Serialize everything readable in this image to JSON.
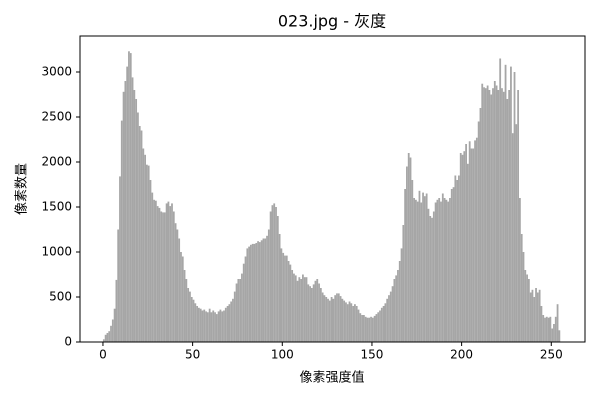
{
  "chart_data": {
    "type": "histogram",
    "title": "023.jpg - 灰度",
    "xlabel": "像素强度值",
    "ylabel": "像素数量",
    "color": "#a6a6a6",
    "bins": [
      0,
      1,
      2,
      3,
      4,
      5,
      6,
      7,
      8,
      9,
      10,
      11,
      12,
      13,
      14,
      15,
      16,
      17,
      18,
      19,
      20,
      21,
      22,
      23,
      24,
      25,
      26,
      27,
      28,
      29,
      30,
      31,
      32,
      33,
      34,
      35,
      36,
      37,
      38,
      39,
      40,
      41,
      42,
      43,
      44,
      45,
      46,
      47,
      48,
      49,
      50,
      51,
      52,
      53,
      54,
      55,
      56,
      57,
      58,
      59,
      60,
      61,
      62,
      63,
      64,
      65,
      66,
      67,
      68,
      69,
      70,
      71,
      72,
      73,
      74,
      75,
      76,
      77,
      78,
      79,
      80,
      81,
      82,
      83,
      84,
      85,
      86,
      87,
      88,
      89,
      90,
      91,
      92,
      93,
      94,
      95,
      96,
      97,
      98,
      99,
      100,
      101,
      102,
      103,
      104,
      105,
      106,
      107,
      108,
      109,
      110,
      111,
      112,
      113,
      114,
      115,
      116,
      117,
      118,
      119,
      120,
      121,
      122,
      123,
      124,
      125,
      126,
      127,
      128,
      129,
      130,
      131,
      132,
      133,
      134,
      135,
      136,
      137,
      138,
      139,
      140,
      141,
      142,
      143,
      144,
      145,
      146,
      147,
      148,
      149,
      150,
      151,
      152,
      153,
      154,
      155,
      156,
      157,
      158,
      159,
      160,
      161,
      162,
      163,
      164,
      165,
      166,
      167,
      168,
      169,
      170,
      171,
      172,
      173,
      174,
      175,
      176,
      177,
      178,
      179,
      180,
      181,
      182,
      183,
      184,
      185,
      186,
      187,
      188,
      189,
      190,
      191,
      192,
      193,
      194,
      195,
      196,
      197,
      198,
      199,
      200,
      201,
      202,
      203,
      204,
      205,
      206,
      207,
      208,
      209,
      210,
      211,
      212,
      213,
      214,
      215,
      216,
      217,
      218,
      219,
      220,
      221,
      222,
      223,
      224,
      225,
      226,
      227,
      228,
      229,
      230,
      231,
      232,
      233,
      234,
      235,
      236,
      237,
      238,
      239,
      240,
      241,
      242,
      243,
      244,
      245,
      246,
      247,
      248,
      249,
      250,
      251,
      252,
      253,
      254,
      255,
      256
    ],
    "values": [
      30,
      80,
      100,
      120,
      180,
      250,
      370,
      690,
      1250,
      1840,
      2460,
      2780,
      2900,
      3060,
      3230,
      3210,
      2940,
      2800,
      2700,
      2550,
      2400,
      2350,
      2150,
      2080,
      1970,
      1960,
      1800,
      1660,
      1580,
      1570,
      1510,
      1490,
      1450,
      1440,
      1440,
      1540,
      1560,
      1510,
      1540,
      1450,
      1320,
      1250,
      1150,
      1000,
      950,
      800,
      700,
      600,
      560,
      500,
      470,
      430,
      400,
      380,
      370,
      350,
      360,
      340,
      330,
      370,
      330,
      350,
      330,
      310,
      340,
      360,
      340,
      350,
      380,
      400,
      420,
      450,
      480,
      560,
      650,
      700,
      700,
      760,
      870,
      950,
      1040,
      1060,
      1080,
      1090,
      1090,
      1100,
      1120,
      1110,
      1130,
      1150,
      1150,
      1180,
      1250,
      1450,
      1520,
      1540,
      1500,
      1400,
      1200,
      1040,
      990,
      960,
      960,
      900,
      860,
      800,
      760,
      740,
      680,
      720,
      700,
      750,
      720,
      720,
      640,
      620,
      600,
      640,
      680,
      700,
      650,
      600,
      550,
      520,
      500,
      480,
      460,
      500,
      480,
      520,
      540,
      540,
      510,
      480,
      460,
      440,
      420,
      450,
      430,
      400,
      420,
      400,
      360,
      320,
      300,
      300,
      280,
      270,
      270,
      280,
      270,
      290,
      310,
      330,
      350,
      380,
      400,
      430,
      480,
      520,
      560,
      620,
      700,
      740,
      800,
      900,
      1040,
      1300,
      1700,
      1950,
      2100,
      2050,
      1800,
      1600,
      1580,
      1560,
      1680,
      1550,
      1660,
      1620,
      1650,
      1480,
      1400,
      1380,
      1450,
      1550,
      1580,
      1600,
      1560,
      1650,
      1600,
      1580,
      1560,
      1600,
      1700,
      1720,
      1850,
      1800,
      1850,
      2100,
      2080,
      2120,
      2200,
      1980,
      2230,
      2150,
      2150,
      2240,
      2270,
      2450,
      2600,
      2870,
      2830,
      2820,
      2850,
      2800,
      2750,
      2820,
      2900,
      2850,
      2800,
      3150,
      2820,
      2780,
      3080,
      2700,
      2800,
      3060,
      2320,
      3000,
      2420,
      2800,
      1600,
      1200,
      1000,
      800,
      750,
      700,
      550,
      580,
      500,
      600,
      550,
      580,
      400,
      300,
      270,
      280,
      270,
      280,
      150,
      200,
      280,
      420,
      130,
      0
    ],
    "xlim": [
      -12.8,
      268.8
    ],
    "ylim": [
      0,
      3400
    ],
    "xticks": [
      0,
      50,
      100,
      150,
      200,
      250
    ],
    "yticks": [
      0,
      500,
      1000,
      1500,
      2000,
      2500,
      3000
    ]
  }
}
